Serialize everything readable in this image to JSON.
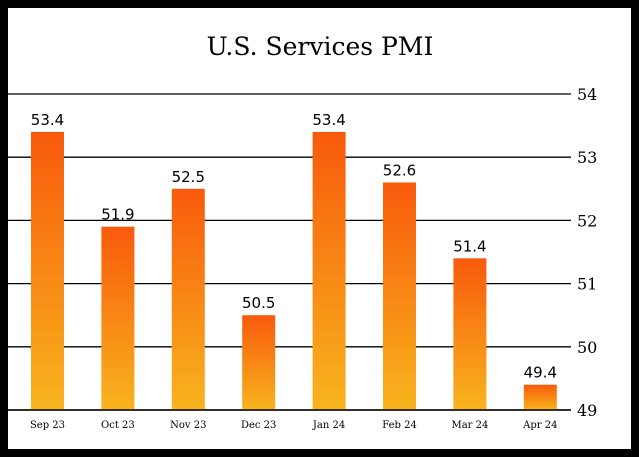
{
  "chart_data": {
    "type": "bar",
    "title": "U.S. Services PMI",
    "xlabel": "",
    "ylabel": "",
    "categories": [
      "Sep 23",
      "Oct 23",
      "Nov 23",
      "Dec 23",
      "Jan 24",
      "Feb 24",
      "Mar 24",
      "Apr 24"
    ],
    "values": [
      53.4,
      51.9,
      52.5,
      50.5,
      53.4,
      52.6,
      51.4,
      49.4
    ],
    "data_labels": [
      "53.4",
      "51.9",
      "52.5",
      "50.5",
      "53.4",
      "52.6",
      "51.4",
      "49.4"
    ],
    "ylim": [
      49,
      54
    ],
    "yticks": [
      "49",
      "50",
      "51",
      "52",
      "53",
      "54"
    ],
    "y_axis_position": "right",
    "grid": true,
    "colors": {
      "bar_top": "#f85a0c",
      "bar_bottom": "#f8b41e",
      "grid": "#000000",
      "frame": "#000000"
    }
  }
}
